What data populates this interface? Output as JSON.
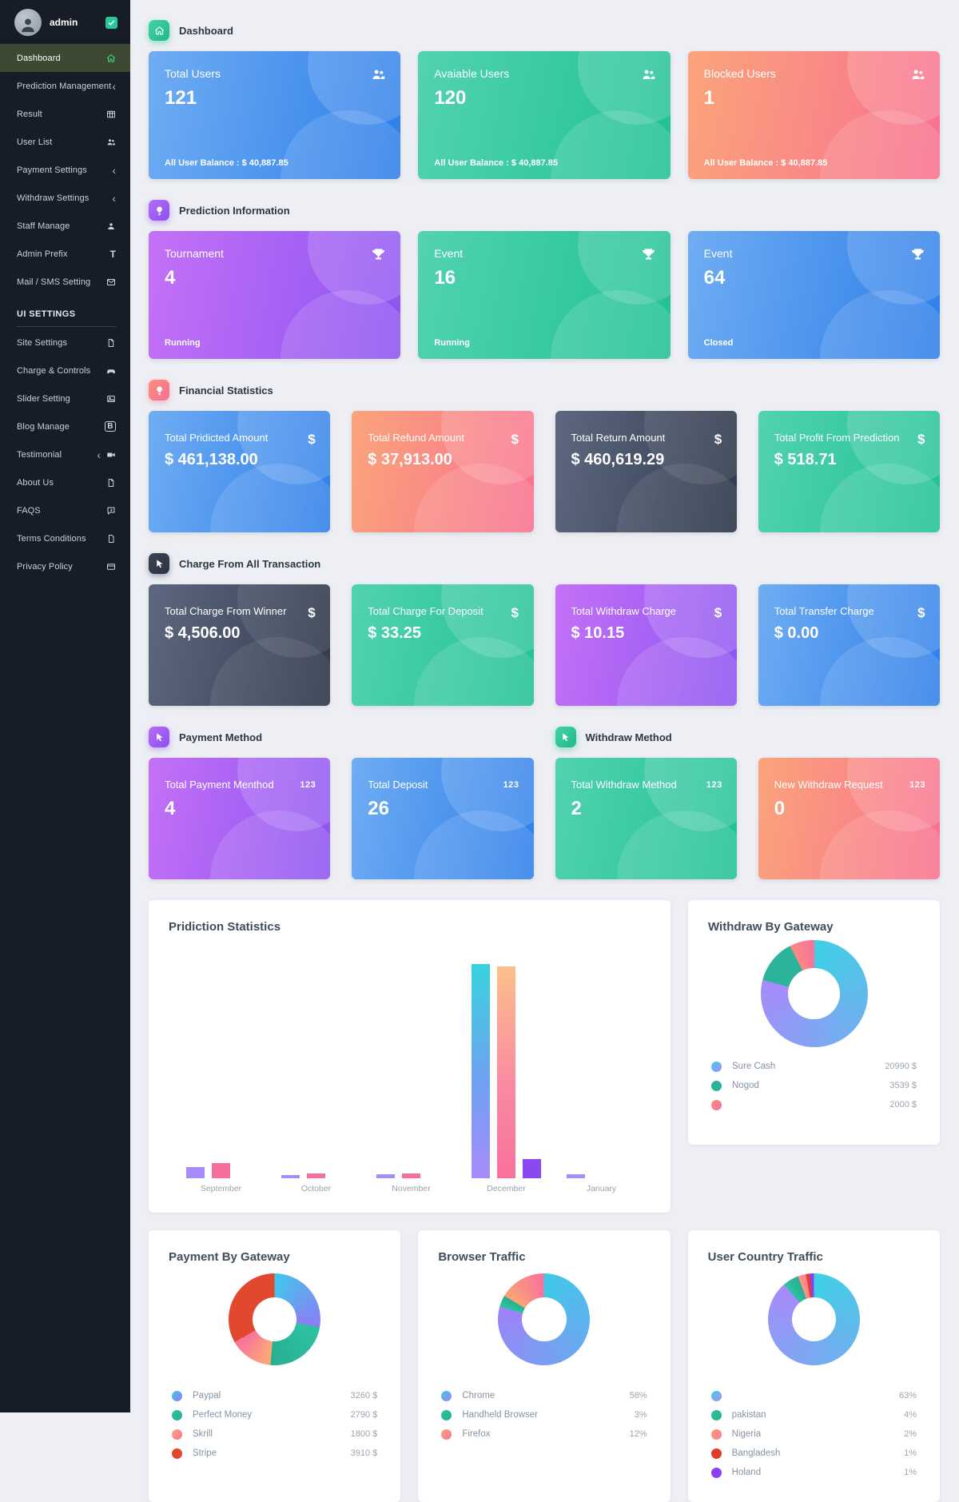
{
  "app": {
    "background": "#edeff4",
    "sidebar_bg": "#161d26",
    "active_item_bg": "#3c4a33",
    "accent_teal": "#2bc79c",
    "accent_purple": "#9b59f5",
    "accent_pink": "#f8719d",
    "accent_blue": "#2f80ea",
    "accent_dark": "#37404f"
  },
  "sidebar": {
    "user": {
      "name": "admin",
      "badge_icon": "check-badge-icon"
    },
    "items": [
      {
        "label": "Dashboard",
        "icon": "home",
        "active": true
      },
      {
        "label": "Prediction Management",
        "icon": "chevron"
      },
      {
        "label": "Result",
        "icon": "table"
      },
      {
        "label": "User List",
        "icon": "users"
      },
      {
        "label": "Payment Settings",
        "icon": "chevron"
      },
      {
        "label": "Withdraw Settings",
        "icon": "chevron"
      },
      {
        "label": "Staff Manage",
        "icon": "staff"
      },
      {
        "label": "Admin Prefix",
        "icon": "text"
      },
      {
        "label": "Mail / SMS Setting",
        "icon": "mail"
      }
    ],
    "section_label": "UI SETTINGS",
    "items_ui": [
      {
        "label": "Site Settings",
        "icon": "doc"
      },
      {
        "label": "Charge & Controls",
        "icon": "controller"
      },
      {
        "label": "Slider Setting",
        "icon": "image"
      },
      {
        "label": "Blog Manage",
        "icon": "blog"
      },
      {
        "label": "Testimonial",
        "icon": "camera",
        "chevron": true
      },
      {
        "label": "About Us",
        "icon": "doc"
      },
      {
        "label": "FAQS",
        "icon": "faq"
      },
      {
        "label": "Terms Conditions",
        "icon": "file"
      },
      {
        "label": "Privacy Policy",
        "icon": "card"
      }
    ]
  },
  "sections": [
    {
      "title": "Dashboard",
      "icon": "home",
      "accent": "teal",
      "cards": [
        {
          "title": "Total Users",
          "value": "121",
          "foot": "All User Balance : $ 40,887.85",
          "grad": "blue",
          "icon": "users"
        },
        {
          "title": "Avaiable Users",
          "value": "120",
          "foot": "All User Balance : $ 40,887.85",
          "grad": "teal",
          "icon": "users"
        },
        {
          "title": "Blocked Users",
          "value": "1",
          "foot": "All User Balance : $ 40,887.85",
          "grad": "sunset",
          "icon": "users"
        }
      ]
    },
    {
      "title": "Prediction Information",
      "icon": "bulb",
      "accent": "purple",
      "cards": [
        {
          "title": "Tournament",
          "value": "4",
          "foot": "Running",
          "grad": "purple",
          "icon": "trophy"
        },
        {
          "title": "Event",
          "value": "16",
          "foot": "Running",
          "grad": "teal",
          "icon": "trophy"
        },
        {
          "title": "Event",
          "value": "64",
          "foot": "Closed",
          "grad": "blue",
          "icon": "trophy"
        }
      ]
    },
    {
      "title": "Financial Statistics",
      "icon": "bulb",
      "accent": "pink",
      "cards": [
        {
          "title": "Total Pridicted Amount",
          "value": "$ 461,138.00",
          "grad": "blue",
          "icon": "dollar"
        },
        {
          "title": "Total Refund Amount",
          "value": "$ 37,913.00",
          "grad": "sunset",
          "icon": "dollar"
        },
        {
          "title": "Total Return Amount",
          "value": "$ 460,619.29",
          "grad": "dark",
          "icon": "dollar"
        },
        {
          "title": "Total Profit From Prediction",
          "value": "$ 518.71",
          "grad": "teal",
          "icon": "dollar"
        }
      ]
    },
    {
      "title": "Charge From All Transaction",
      "icon": "pointer",
      "accent": "dark",
      "cards": [
        {
          "title": "Total Charge From Winner",
          "value": "$ 4,506.00",
          "grad": "dark",
          "icon": "dollar"
        },
        {
          "title": "Total Charge For Deposit",
          "value": "$ 33.25",
          "grad": "teal",
          "icon": "dollar"
        },
        {
          "title": "Total Withdraw Charge",
          "value": "$ 10.15",
          "grad": "purple",
          "icon": "dollar"
        },
        {
          "title": "Total Transfer Charge",
          "value": "$ 0.00",
          "grad": "blue",
          "icon": "dollar"
        }
      ]
    },
    {
      "title": "Payment Method",
      "icon": "pointer",
      "accent": "purple",
      "cards": [
        {
          "title": "Total Payment Menthod",
          "value": "4",
          "grad": "purple",
          "icon": "123"
        },
        {
          "title": "Total Deposit",
          "value": "26",
          "grad": "blue",
          "icon": "123"
        }
      ]
    },
    {
      "title": "Withdraw Method",
      "icon": "pointer",
      "accent": "teal",
      "cards": [
        {
          "title": "Total Withdraw Method",
          "value": "2",
          "grad": "teal",
          "icon": "123"
        },
        {
          "title": "New Withdraw Request",
          "value": "0",
          "grad": "sunset",
          "icon": "123"
        }
      ]
    }
  ],
  "chart_data": [
    {
      "id": "prediction-statistics",
      "type": "bar",
      "title": "Pridiction Statistics",
      "categories": [
        "September",
        "October",
        "November",
        "December",
        "January"
      ],
      "series": [
        {
          "name": "",
          "values": [
            14,
            4,
            5,
            268,
            5
          ],
          "gradient": [
            "#38d3de",
            "#6fa1f2",
            "#a78bfa"
          ],
          "solid": "#a78bfa"
        },
        {
          "name": "",
          "values": [
            19,
            6,
            6,
            265,
            0
          ],
          "gradient": [
            "#fcc08b",
            "#f98ba1",
            "#f8719d"
          ],
          "solid": "#f56f9e"
        },
        {
          "name": "",
          "values": [
            0,
            0,
            0,
            24,
            0
          ],
          "gradient": [
            "#8b48f0",
            "#8b48f0",
            "#8b48f0"
          ],
          "solid": "#8b48f0"
        }
      ],
      "unit": "relative px height (axes and gridlines hidden in source)",
      "axes_hidden": true,
      "legend": false
    },
    {
      "id": "withdraw-by-gateway",
      "type": "donut",
      "title": "Withdraw By Gateway",
      "legend_position": "bottom",
      "slices": [
        {
          "label": "Sure Cash",
          "value": 20990,
          "display": "20990 $",
          "colors": [
            "#3fd0e5",
            "#a78bfa"
          ]
        },
        {
          "label": "Nogod",
          "value": 3539,
          "display": "3539 $",
          "colors": [
            "#2cb39a",
            "#2cb39a"
          ]
        },
        {
          "label": "",
          "value": 2000,
          "display": "2000 $",
          "colors": [
            "#fb8b80",
            "#f8719d"
          ]
        }
      ]
    },
    {
      "id": "payment-by-gateway",
      "type": "donut",
      "title": "Payment By Gateway",
      "legend_position": "bottom",
      "slices": [
        {
          "label": "Paypal",
          "value": 3260,
          "display": "3260 $",
          "colors": [
            "#41c6ec",
            "#8d7df5"
          ]
        },
        {
          "label": "Perfect Money",
          "value": 2790,
          "display": "2790 $",
          "colors": [
            "#2cc3a2",
            "#28af90"
          ]
        },
        {
          "label": "Skrill",
          "value": 1800,
          "display": "1800 $",
          "colors": [
            "#fcaa76",
            "#f8719d"
          ]
        },
        {
          "label": "Stripe",
          "value": 3910,
          "display": "3910 $",
          "colors": [
            "#e2482e",
            "#e2482e"
          ]
        }
      ]
    },
    {
      "id": "browser-traffic",
      "type": "donut",
      "title": "Browser Traffic",
      "legend_position": "bottom",
      "slices": [
        {
          "label": "Chrome",
          "value": 58,
          "display": "58%",
          "colors": [
            "#3fc9e8",
            "#9d83f8"
          ]
        },
        {
          "label": "Handheld Browser",
          "value": 3,
          "display": "3%",
          "colors": [
            "#2cc3a2",
            "#28af90"
          ]
        },
        {
          "label": "Firefox",
          "value": 12,
          "display": "12%",
          "colors": [
            "#fca573",
            "#f8719d"
          ]
        }
      ]
    },
    {
      "id": "user-country-traffic",
      "type": "donut",
      "title": "User Country Traffic",
      "legend_position": "bottom",
      "slices": [
        {
          "label": "",
          "value": 63,
          "display": "63%",
          "colors": [
            "#3fd0e5",
            "#a78bfa"
          ]
        },
        {
          "label": "pakistan",
          "value": 4,
          "display": "4%",
          "colors": [
            "#2cc3a2",
            "#28af90"
          ]
        },
        {
          "label": "Nigeria",
          "value": 2,
          "display": "2%",
          "colors": [
            "#fc9b79",
            "#f87e98"
          ]
        },
        {
          "label": "Bangladesh",
          "value": 1,
          "display": "1%",
          "colors": [
            "#df3e2b",
            "#df3e2b"
          ]
        },
        {
          "label": "Holand",
          "value": 1,
          "display": "1%",
          "colors": [
            "#8b3ff2",
            "#8b3ff2"
          ]
        }
      ]
    }
  ]
}
